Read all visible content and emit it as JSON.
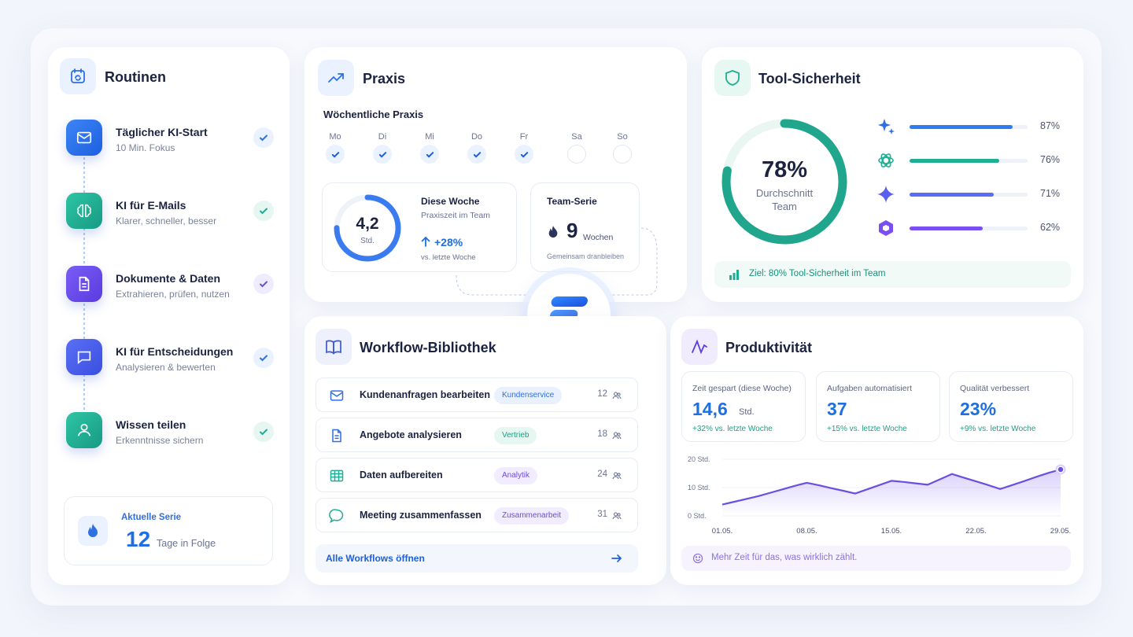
{
  "routines": {
    "title": "Routinen",
    "items": [
      {
        "title": "Täglicher KI-Start",
        "subtitle": "10 Min. Fokus",
        "icon": "mail-icon"
      },
      {
        "title": "KI für E-Mails",
        "subtitle": "Klarer, schneller, besser",
        "icon": "brain-icon"
      },
      {
        "title": "Dokumente & Daten",
        "subtitle": "Extrahieren, prüfen, nutzen",
        "icon": "document-icon"
      },
      {
        "title": "KI für Entscheidungen",
        "subtitle": "Analysieren & bewerten",
        "icon": "chat-icon"
      },
      {
        "title": "Wissen teilen",
        "subtitle": "Erkenntnisse sichern",
        "icon": "person-icon"
      }
    ],
    "streak": {
      "label": "Aktuelle Serie",
      "value": "12",
      "unit": "Tage in Folge"
    }
  },
  "praxis": {
    "title": "Praxis",
    "weekly_title": "Wöchentliche Praxis",
    "days": [
      {
        "label": "Mo",
        "done": true
      },
      {
        "label": "Di",
        "done": true
      },
      {
        "label": "Mi",
        "done": true
      },
      {
        "label": "Do",
        "done": true
      },
      {
        "label": "Fr",
        "done": true
      },
      {
        "label": "Sa",
        "done": false
      },
      {
        "label": "So",
        "done": false
      }
    ],
    "week": {
      "value": "4,2",
      "unit": "Std.",
      "title": "Diese Woche",
      "subtitle": "Praxiszeit im Team",
      "delta": "+28%",
      "delta_note": "vs. letzte Woche",
      "progress": 0.75
    },
    "team": {
      "title": "Team-Serie",
      "value": "9",
      "unit": "Wochen",
      "note": "Gemeinsam dranbleiben"
    }
  },
  "tool_security": {
    "title": "Tool-Sicherheit",
    "average": {
      "value": "78%",
      "label_line1": "Durchschnitt",
      "label_line2": "Team",
      "progress": 0.78
    },
    "tools": [
      {
        "icon": "sparkle-icon",
        "percent": "87%",
        "value": 0.87,
        "color": "#2f7bf0"
      },
      {
        "icon": "openai-icon",
        "percent": "76%",
        "value": 0.76,
        "color": "#1fae93"
      },
      {
        "icon": "gemini-star-icon",
        "percent": "71%",
        "value": 0.71,
        "color": "#5b6df3"
      },
      {
        "icon": "hexagon-icon",
        "percent": "62%",
        "value": 0.62,
        "color": "#7a4ff0"
      }
    ],
    "goal": "Ziel: 80% Tool-Sicherheit im Team"
  },
  "workflows": {
    "title": "Workflow-Bibliothek",
    "rows": [
      {
        "icon": "mail-icon",
        "label": "Kundenanfragen bearbeiten",
        "tag": "Kundenservice",
        "count": "12",
        "tag_bg": "#e9f1ff",
        "tag_fg": "#2f6fe0"
      },
      {
        "icon": "document-icon",
        "label": "Angebote analysieren",
        "tag": "Vertrieb",
        "count": "18",
        "tag_bg": "#e6f6f1",
        "tag_fg": "#1f9d86"
      },
      {
        "icon": "table-icon",
        "label": "Daten aufbereiten",
        "tag": "Analytik",
        "count": "24",
        "tag_bg": "#f1ecff",
        "tag_fg": "#6b4fd8"
      },
      {
        "icon": "chat-bubble-icon",
        "label": "Meeting zusammenfassen",
        "tag": "Zusammenarbeit",
        "count": "31",
        "tag_bg": "#f1ecff",
        "tag_fg": "#6b4fd8"
      }
    ],
    "open_all": "Alle Workflows öffnen"
  },
  "productivity": {
    "title": "Produktivität",
    "kpis": [
      {
        "label": "Zeit gespart (diese Woche)",
        "value": "14,6",
        "unit": "Std.",
        "delta": "+32% vs. letzte Woche"
      },
      {
        "label": "Aufgaben automatisiert",
        "value": "37",
        "unit": "",
        "delta": "+15% vs. letzte Woche"
      },
      {
        "label": "Qualität verbessert",
        "value": "23%",
        "unit": "",
        "delta": "+9% vs. letzte Woche"
      }
    ],
    "footer": "Mehr Zeit für das, was wirklich zählt."
  },
  "chart_data": {
    "type": "area",
    "x_ticks": [
      "01.05.",
      "08.05.",
      "15.05.",
      "22.05.",
      "29.05."
    ],
    "y_ticks": [
      "0 Std.",
      "10 Std.",
      "20 Std."
    ],
    "ylim": [
      0,
      20
    ],
    "x": [
      0,
      1,
      2,
      3,
      4,
      5,
      6,
      7,
      8,
      9,
      10,
      11,
      12,
      13,
      14,
      15,
      16,
      17,
      18,
      19,
      20,
      21,
      22,
      23,
      24,
      25,
      26,
      27,
      28
    ],
    "values": [
      4.0,
      5.0,
      6.0,
      7.0,
      8.2,
      9.4,
      10.6,
      11.7,
      10.8,
      9.8,
      8.9,
      7.9,
      9.4,
      10.9,
      12.4,
      12.0,
      11.5,
      11.0,
      12.9,
      14.8,
      13.5,
      12.2,
      10.9,
      9.5,
      10.9,
      12.3,
      13.8,
      15.2,
      16.4
    ],
    "color": "#6b4fe0"
  }
}
